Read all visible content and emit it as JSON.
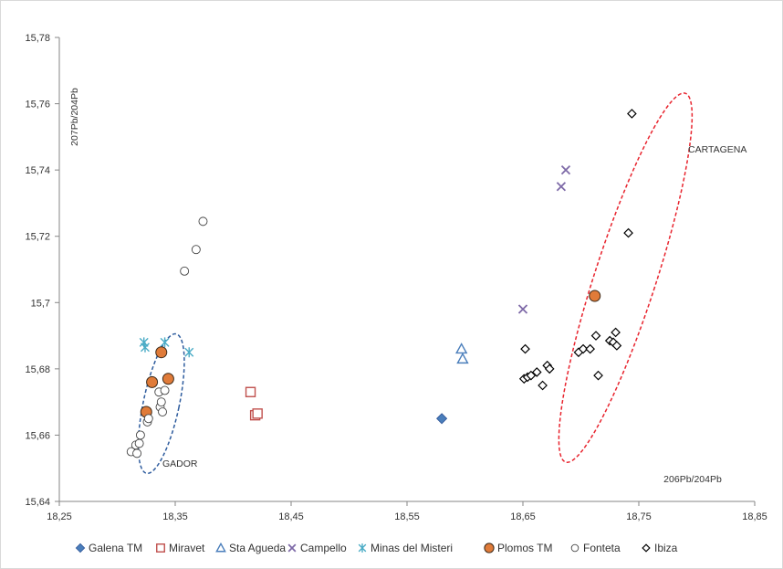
{
  "chart_data": {
    "type": "scatter",
    "title": "",
    "xlabel": "206Pb/204Pb",
    "ylabel": "207Pb/204Pb",
    "xlim": [
      18.25,
      18.85
    ],
    "ylim": [
      15.64,
      15.78
    ],
    "x_ticks": [
      "18,25",
      "18,35",
      "18,45",
      "18,55",
      "18,65",
      "18,75",
      "18,85"
    ],
    "y_ticks": [
      "15,64",
      "15,66",
      "15,68",
      "15,7",
      "15,72",
      "15,74",
      "15,76",
      "15,78"
    ],
    "grid": false,
    "legend_position": "bottom",
    "annotations": [
      "GADOR",
      "CARTAGENA"
    ],
    "ellipses": [
      {
        "label": "GADOR",
        "center": [
          18.338,
          15.6695
        ],
        "rx_data": 0.0155,
        "ry_data": 0.0215,
        "rotate_deg": 12,
        "color": "#2e5c9e"
      },
      {
        "label": "CARTAGENA",
        "center": [
          18.7385,
          15.7075
        ],
        "rx_data": 0.0265,
        "ry_data": 0.0585,
        "rotate_deg": 18,
        "color": "#e8242e"
      }
    ],
    "series": [
      {
        "name": "Galena TM",
        "marker": "diamond-filled",
        "color": "#4a7ebb",
        "points": [
          [
            18.58,
            15.665
          ]
        ]
      },
      {
        "name": "Miravet",
        "marker": "square-open",
        "color": "#c0504d",
        "points": [
          [
            18.415,
            15.673
          ],
          [
            18.419,
            15.666
          ],
          [
            18.421,
            15.6665
          ]
        ]
      },
      {
        "name": "Sta Agueda",
        "marker": "triangle-open",
        "color": "#4a7ebb",
        "points": [
          [
            18.597,
            15.686
          ],
          [
            18.598,
            15.683
          ]
        ]
      },
      {
        "name": "Campello",
        "marker": "x",
        "color": "#7e6aa8",
        "points": [
          [
            18.65,
            15.698
          ],
          [
            18.683,
            15.735
          ],
          [
            18.687,
            15.74
          ]
        ]
      },
      {
        "name": "Minas del Misteri",
        "marker": "star",
        "color": "#4bacc6",
        "points": [
          [
            18.323,
            15.688
          ],
          [
            18.324,
            15.6865
          ],
          [
            18.341,
            15.688
          ],
          [
            18.362,
            15.685
          ]
        ]
      },
      {
        "name": "Plomos TM",
        "marker": "circle-filled",
        "color": "#e07b39",
        "points": [
          [
            18.325,
            15.667
          ],
          [
            18.33,
            15.676
          ],
          [
            18.338,
            15.685
          ],
          [
            18.344,
            15.677
          ],
          [
            18.712,
            15.702
          ]
        ]
      },
      {
        "name": "Fonteta",
        "marker": "circle-open",
        "color": "#444444",
        "points": [
          [
            18.312,
            15.655
          ],
          [
            18.316,
            15.657
          ],
          [
            18.317,
            15.6545
          ],
          [
            18.319,
            15.6575
          ],
          [
            18.32,
            15.66
          ],
          [
            18.326,
            15.664
          ],
          [
            18.327,
            15.665
          ],
          [
            18.336,
            15.673
          ],
          [
            18.337,
            15.6685
          ],
          [
            18.338,
            15.67
          ],
          [
            18.339,
            15.667
          ],
          [
            18.341,
            15.6735
          ],
          [
            18.358,
            15.7095
          ],
          [
            18.368,
            15.716
          ],
          [
            18.374,
            15.7245
          ]
        ]
      },
      {
        "name": "Ibiza",
        "marker": "diamond-open",
        "color": "#000000",
        "points": [
          [
            18.651,
            15.677
          ],
          [
            18.652,
            15.686
          ],
          [
            18.654,
            15.6775
          ],
          [
            18.657,
            15.678
          ],
          [
            18.662,
            15.679
          ],
          [
            18.667,
            15.675
          ],
          [
            18.671,
            15.681
          ],
          [
            18.673,
            15.68
          ],
          [
            18.698,
            15.685
          ],
          [
            18.702,
            15.686
          ],
          [
            18.708,
            15.686
          ],
          [
            18.713,
            15.69
          ],
          [
            18.715,
            15.678
          ],
          [
            18.725,
            15.6885
          ],
          [
            18.728,
            15.688
          ],
          [
            18.73,
            15.691
          ],
          [
            18.731,
            15.687
          ],
          [
            18.741,
            15.721
          ],
          [
            18.744,
            15.757
          ]
        ]
      }
    ]
  }
}
